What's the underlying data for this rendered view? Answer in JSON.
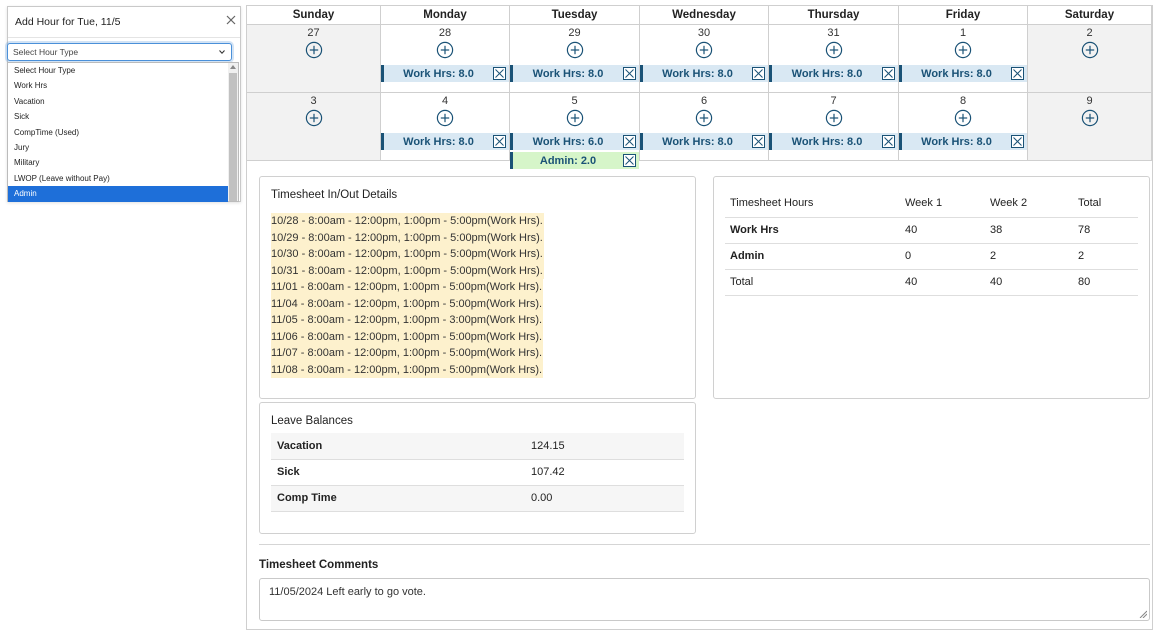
{
  "popup": {
    "title": "Add Hour for Tue, 11/5",
    "select_value": "Select Hour Type",
    "options": [
      "Select Hour Type",
      "Work Hrs",
      "Vacation",
      "Sick",
      "CompTime (Used)",
      "Jury",
      "Military",
      "LWOP (Leave without Pay)",
      "Admin"
    ],
    "highlighted_option": "Admin"
  },
  "calendar": {
    "days": [
      "Sunday",
      "Monday",
      "Tuesday",
      "Wednesday",
      "Thursday",
      "Friday",
      "Saturday"
    ],
    "weeks": [
      [
        {
          "date": "27",
          "entries": []
        },
        {
          "date": "28",
          "entries": [
            {
              "label": "Work Hrs: 8.0",
              "kind": "work"
            }
          ]
        },
        {
          "date": "29",
          "entries": [
            {
              "label": "Work Hrs: 8.0",
              "kind": "work"
            }
          ]
        },
        {
          "date": "30",
          "entries": [
            {
              "label": "Work Hrs: 8.0",
              "kind": "work"
            }
          ]
        },
        {
          "date": "31",
          "entries": [
            {
              "label": "Work Hrs: 8.0",
              "kind": "work"
            }
          ]
        },
        {
          "date": "1",
          "entries": [
            {
              "label": "Work Hrs: 8.0",
              "kind": "work"
            }
          ]
        },
        {
          "date": "2",
          "entries": []
        }
      ],
      [
        {
          "date": "3",
          "entries": []
        },
        {
          "date": "4",
          "entries": [
            {
              "label": "Work Hrs: 8.0",
              "kind": "work"
            }
          ]
        },
        {
          "date": "5",
          "entries": [
            {
              "label": "Work Hrs: 6.0",
              "kind": "work"
            },
            {
              "label": "Admin: 2.0",
              "kind": "admin"
            }
          ]
        },
        {
          "date": "6",
          "entries": [
            {
              "label": "Work Hrs: 8.0",
              "kind": "work"
            }
          ]
        },
        {
          "date": "7",
          "entries": [
            {
              "label": "Work Hrs: 8.0",
              "kind": "work"
            }
          ]
        },
        {
          "date": "8",
          "entries": [
            {
              "label": "Work Hrs: 8.0",
              "kind": "work"
            }
          ]
        },
        {
          "date": "9",
          "entries": []
        }
      ]
    ]
  },
  "inout": {
    "title": "Timesheet In/Out Details",
    "lines": [
      "10/28 - 8:00am - 12:00pm, 1:00pm - 5:00pm(Work Hrs).",
      "10/29 - 8:00am - 12:00pm, 1:00pm - 5:00pm(Work Hrs).",
      "10/30 - 8:00am - 12:00pm, 1:00pm - 5:00pm(Work Hrs).",
      "10/31 - 8:00am - 12:00pm, 1:00pm - 5:00pm(Work Hrs).",
      "11/01 - 8:00am - 12:00pm, 1:00pm - 5:00pm(Work Hrs).",
      "11/04 - 8:00am - 12:00pm, 1:00pm - 5:00pm(Work Hrs).",
      "11/05 - 8:00am - 12:00pm, 1:00pm - 3:00pm(Work Hrs).",
      "11/06 - 8:00am - 12:00pm, 1:00pm - 5:00pm(Work Hrs).",
      "11/07 - 8:00am - 12:00pm, 1:00pm - 5:00pm(Work Hrs).",
      "11/08 - 8:00am - 12:00pm, 1:00pm - 5:00pm(Work Hrs)."
    ]
  },
  "hours": {
    "headers": [
      "Timesheet Hours",
      "Week 1",
      "Week 2",
      "Total"
    ],
    "rows": [
      [
        "Work Hrs",
        "40",
        "38",
        "78"
      ],
      [
        "Admin",
        "0",
        "2",
        "2"
      ],
      [
        "Total",
        "40",
        "40",
        "80"
      ]
    ]
  },
  "leave": {
    "title": "Leave Balances",
    "rows": [
      [
        "Vacation",
        "124.15"
      ],
      [
        "Sick",
        "107.42"
      ],
      [
        "Comp Time",
        "0.00"
      ]
    ]
  },
  "comments": {
    "title": "Timesheet Comments",
    "text": "11/05/2024 Left early to go vote."
  },
  "colors": {
    "work_entry_bg": "#d9e8f3",
    "admin_entry_bg": "#d6f5c9",
    "entry_text": "#1a5276",
    "inout_highlight": "#fdf1cd",
    "dropdown_selected": "#1e6fd9"
  },
  "icons": {
    "add": "plus-circle-icon",
    "remove": "close-box-icon",
    "popup_close": "close-icon",
    "select": "chevron-down-icon"
  }
}
